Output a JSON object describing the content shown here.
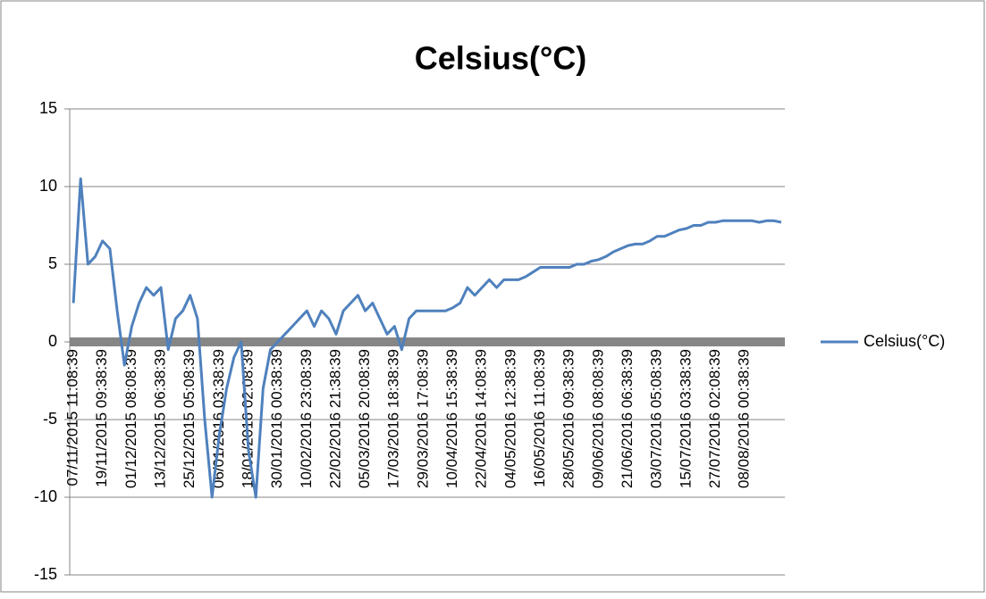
{
  "chart_data": {
    "type": "line",
    "title": "Celsius(°C)",
    "categories": [
      "07/11/2015 11:08:39",
      null,
      null,
      null,
      "19/11/2015 09:38:39",
      null,
      null,
      null,
      "01/12/2015 08:08:39",
      null,
      null,
      null,
      "13/12/2015 06:38:39",
      null,
      null,
      null,
      "25/12/2015 05:08:39",
      null,
      null,
      null,
      "06/01/2016 03:38:39",
      null,
      null,
      null,
      "18/01/2016 02:08:39",
      null,
      null,
      null,
      "30/01/2016 00:38:39",
      null,
      null,
      null,
      "10/02/2016 23:08:39",
      null,
      null,
      null,
      "22/02/2016 21:38:39",
      null,
      null,
      null,
      "05/03/2016 20:08:39",
      null,
      null,
      null,
      "17/03/2016 18:38:39",
      null,
      null,
      null,
      "29/03/2016 17:08:39",
      null,
      null,
      null,
      "10/04/2016 15:38:39",
      null,
      null,
      null,
      "22/04/2016 14:08:39",
      null,
      null,
      null,
      "04/05/2016 12:38:39",
      null,
      null,
      null,
      "16/05/2016 11:08:39",
      null,
      null,
      null,
      "28/05/2016 09:38:39",
      null,
      null,
      null,
      "09/06/2016 08:08:39",
      null,
      null,
      null,
      "21/06/2016 06:38:39",
      null,
      null,
      null,
      "03/07/2016 05:08:39",
      null,
      null,
      null,
      "15/07/2016 03:38:39",
      null,
      null,
      null,
      "27/07/2016 02:08:39",
      null,
      null,
      null,
      "08/08/2016 00:38:39",
      null,
      null,
      null,
      null,
      null
    ],
    "series": [
      {
        "name": "Celsius(°C)",
        "color": "#4f81bd",
        "values": [
          2.5,
          10.5,
          5,
          5.5,
          6.5,
          6,
          2,
          -1.5,
          1,
          2.5,
          3.5,
          3,
          3.5,
          -0.5,
          1.5,
          2,
          3,
          1.5,
          -5,
          -10,
          -6,
          -3,
          -1,
          0,
          -7,
          -10,
          -3,
          -0.5,
          0,
          0.5,
          1,
          1.5,
          2,
          1,
          2,
          1.5,
          0.5,
          2,
          2.5,
          3,
          2,
          2.5,
          1.5,
          0.5,
          1,
          -0.5,
          1.5,
          2,
          2,
          2,
          2,
          2,
          2.2,
          2.5,
          3.5,
          3,
          3.5,
          4,
          3.5,
          4,
          4,
          4,
          4.2,
          4.5,
          4.8,
          4.8,
          4.8,
          4.8,
          4.8,
          5,
          5,
          5.2,
          5.3,
          5.5,
          5.8,
          6,
          6.2,
          6.3,
          6.3,
          6.5,
          6.8,
          6.8,
          7,
          7.2,
          7.3,
          7.5,
          7.5,
          7.7,
          7.7,
          7.8,
          7.8,
          7.8,
          7.8,
          7.8,
          7.7,
          7.8,
          7.8,
          7.7
        ]
      }
    ],
    "ylim": [
      -15,
      15
    ],
    "yticks": [
      -15,
      -10,
      -5,
      0,
      5,
      10,
      15
    ],
    "grid": true,
    "legend": "right"
  }
}
